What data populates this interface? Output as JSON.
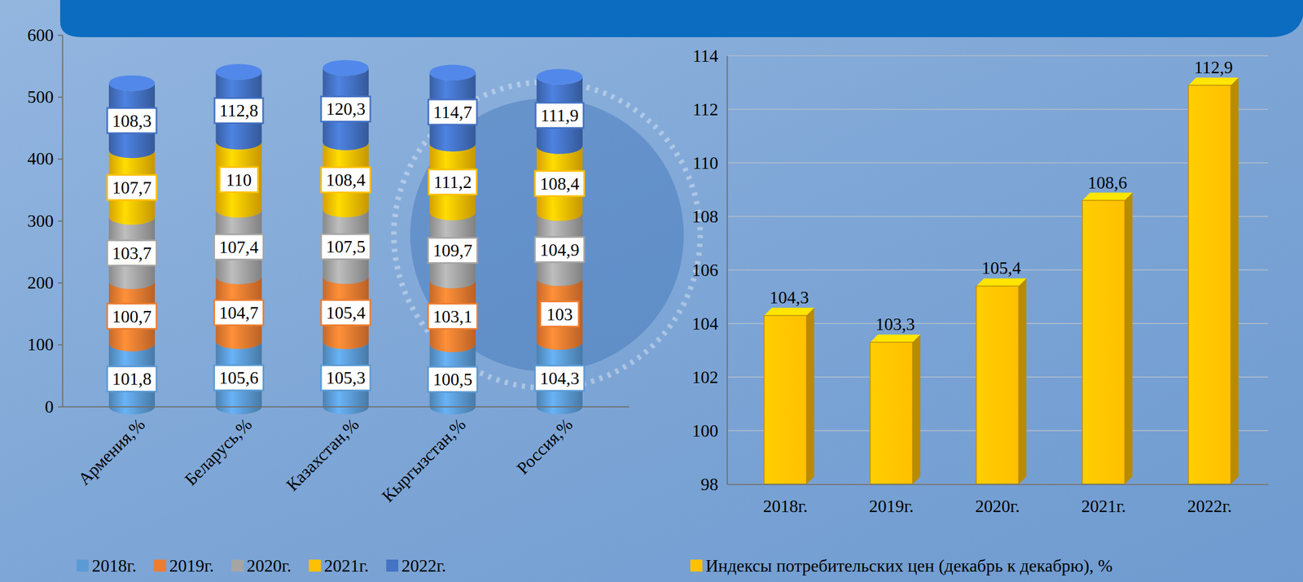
{
  "chart_data": [
    {
      "type": "bar",
      "stacked": true,
      "data_labels": true,
      "grid": false,
      "legend": "bottom",
      "categories": [
        "Армения,%",
        "Беларусь,%",
        "Казахстан,%",
        "Кыргызстан,%",
        "Россия,%"
      ],
      "series": [
        {
          "name": "2018г.",
          "color": "#5b9bd5",
          "values": [
            101.8,
            105.6,
            105.3,
            100.5,
            104.3
          ],
          "value_labels": [
            "101,8",
            "105,6",
            "105,3",
            "100,5",
            "104,3"
          ]
        },
        {
          "name": "2019г.",
          "color": "#ed7d31",
          "values": [
            100.7,
            104.7,
            105.4,
            103.1,
            103
          ],
          "value_labels": [
            "100,7",
            "104,7",
            "105,4",
            "103,1",
            "103"
          ]
        },
        {
          "name": "2020г.",
          "color": "#a5a5a5",
          "values": [
            103.7,
            107.4,
            107.5,
            109.7,
            104.9
          ],
          "value_labels": [
            "103,7",
            "107,4",
            "107,5",
            "109,7",
            "104,9"
          ]
        },
        {
          "name": "2021г.",
          "color": "#ffc000",
          "values": [
            107.7,
            110,
            108.4,
            111.2,
            108.4
          ],
          "value_labels": [
            "107,7",
            "110",
            "108,4",
            "111,2",
            "108,4"
          ]
        },
        {
          "name": "2022г.",
          "color": "#4472c4",
          "values": [
            108.3,
            112.8,
            120.3,
            114.7,
            111.9
          ],
          "value_labels": [
            "108,3",
            "112,8",
            "120,3",
            "114,7",
            "111,9"
          ]
        }
      ],
      "ylim": [
        0,
        600
      ],
      "yticks": [
        0,
        100,
        200,
        300,
        400,
        500,
        600
      ]
    },
    {
      "type": "bar",
      "data_labels": true,
      "grid": true,
      "legend": "bottom",
      "categories": [
        "2018г.",
        "2019г.",
        "2020г.",
        "2021г.",
        "2022г."
      ],
      "series": [
        {
          "name": "Индексы потребительских цен (декабрь к декабрю), %",
          "color": "#ffc000",
          "values": [
            104.3,
            103.3,
            105.4,
            108.6,
            112.9
          ],
          "value_labels": [
            "104,3",
            "103,3",
            "105,4",
            "108,6",
            "112,9"
          ]
        }
      ],
      "ylim": [
        98,
        114
      ],
      "yticks": [
        98,
        100,
        102,
        104,
        106,
        108,
        110,
        112,
        114
      ]
    }
  ]
}
